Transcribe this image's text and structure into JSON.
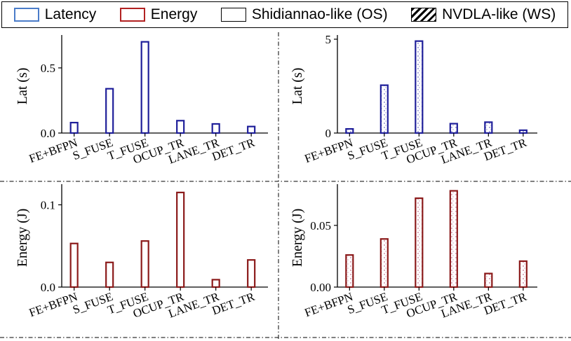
{
  "legend": {
    "latency": "Latency",
    "energy": "Energy",
    "os": "Shidiannao-like (OS)",
    "ws": "NVDLA-like (WS)"
  },
  "colors": {
    "latency": "#1f1f9a",
    "energy": "#8b1a1a",
    "latency_legend": "#4a7cc9",
    "energy_legend": "#b22222"
  },
  "chart_data": [
    {
      "type": "bar",
      "metric": "latency",
      "dataflow": "Shidiannao-like (OS)",
      "title": "",
      "xlabel": "",
      "ylabel": "Lat (s)",
      "categories": [
        "FE+BFPN",
        "S_FUSE",
        "T_FUSE",
        "OCUP_TR",
        "LANE_TR",
        "DET_TR"
      ],
      "values": [
        0.08,
        0.34,
        0.7,
        0.095,
        0.07,
        0.05
      ],
      "ylim": [
        0,
        0.72
      ],
      "yticks": [
        0.0,
        0.5
      ],
      "yticklabels": [
        "0.0",
        "0.5"
      ]
    },
    {
      "type": "bar",
      "metric": "latency",
      "dataflow": "NVDLA-like (WS)",
      "title": "",
      "xlabel": "",
      "ylabel": "Lat (s)",
      "categories": [
        "FE+BFPN",
        "S_FUSE",
        "T_FUSE",
        "OCUP_TR",
        "LANE_TR",
        "DET_TR"
      ],
      "values": [
        0.22,
        2.55,
        4.9,
        0.5,
        0.58,
        0.15
      ],
      "ylim": [
        0,
        5
      ],
      "yticks": [
        0,
        5
      ],
      "yticklabels": [
        "0",
        "5"
      ]
    },
    {
      "type": "bar",
      "metric": "energy",
      "dataflow": "Shidiannao-like (OS)",
      "title": "",
      "xlabel": "",
      "ylabel": "Energy (J)",
      "categories": [
        "FE+BFPN",
        "S_FUSE",
        "T_FUSE",
        "OCUP_TR",
        "LANE_TR",
        "DET_TR"
      ],
      "values": [
        0.053,
        0.03,
        0.056,
        0.115,
        0.009,
        0.033
      ],
      "ylim": [
        0,
        0.12
      ],
      "yticks": [
        0.0,
        0.1
      ],
      "yticklabels": [
        "0.0",
        "0.1"
      ]
    },
    {
      "type": "bar",
      "metric": "energy",
      "dataflow": "NVDLA-like (WS)",
      "title": "",
      "xlabel": "",
      "ylabel": "Energy (J)",
      "categories": [
        "FE+BFPN",
        "S_FUSE",
        "T_FUSE",
        "OCUP_TR",
        "LANE_TR",
        "DET_TR"
      ],
      "values": [
        0.026,
        0.039,
        0.072,
        0.078,
        0.011,
        0.021
      ],
      "ylim": [
        0,
        0.08
      ],
      "yticks": [
        0.0,
        0.05
      ],
      "yticklabels": [
        "0.00",
        "0.05"
      ]
    }
  ]
}
